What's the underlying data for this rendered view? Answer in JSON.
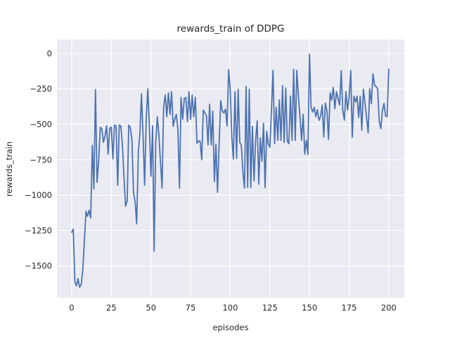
{
  "title": "rewards_train of DDPG",
  "colors": {
    "line": "#4c72b0",
    "plot_background": "#eaeaf2",
    "grid": "#ffffff",
    "text": "#262626",
    "figure_background": "#ffffff"
  },
  "chart_data": {
    "type": "line",
    "title": "rewards_train of DDPG",
    "xlabel": "episodes",
    "ylabel": "rewards_train",
    "x_ticks": [
      0,
      25,
      50,
      75,
      100,
      125,
      150,
      175,
      200
    ],
    "y_ticks": [
      0,
      -250,
      -500,
      -750,
      -1000,
      -1250,
      -1500
    ],
    "xlim": [
      -9.3,
      209.8
    ],
    "ylim": [
      -1725,
      99
    ],
    "grid": true,
    "legend": null,
    "series": [
      {
        "name": "rewards_train",
        "color": "#4c72b0",
        "x_range": [
          0,
          200
        ],
        "x_step": 1,
        "values": [
          -1262,
          -1240,
          -1610,
          -1640,
          -1590,
          -1650,
          -1630,
          -1525,
          -1320,
          -1114,
          -1150,
          -1106,
          -1160,
          -649,
          -956,
          -255,
          -910,
          -761,
          -522,
          -530,
          -627,
          -585,
          -510,
          -710,
          -528,
          -520,
          -745,
          -505,
          -512,
          -930,
          -505,
          -512,
          -650,
          -880,
          -1078,
          -1040,
          -505,
          -525,
          -608,
          -980,
          -1049,
          -1203,
          -700,
          -570,
          -285,
          -570,
          -930,
          -470,
          -250,
          -504,
          -866,
          -510,
          -1396,
          -634,
          -446,
          -578,
          -766,
          -950,
          -376,
          -293,
          -446,
          -278,
          -430,
          -270,
          -514,
          -464,
          -430,
          -537,
          -950,
          -310,
          -464,
          -318,
          -310,
          -480,
          -270,
          -464,
          -293,
          -446,
          -310,
          -634,
          -617,
          -620,
          -750,
          -400,
          -418,
          -440,
          -646,
          -358,
          -646,
          -407,
          -905,
          -640,
          -980,
          -628,
          -333,
          -406,
          -420,
          -393,
          -512,
          -114,
          -253,
          -590,
          -745,
          -270,
          -740,
          -253,
          -628,
          -646,
          -840,
          -950,
          -233,
          -945,
          -253,
          -945,
          -515,
          -900,
          -615,
          -476,
          -923,
          -595,
          -760,
          -492,
          -948,
          -550,
          -640,
          -662,
          -394,
          -119,
          -637,
          -380,
          -613,
          -328,
          -613,
          -227,
          -628,
          -244,
          -620,
          -637,
          -300,
          -613,
          -111,
          -613,
          -119,
          -300,
          -444,
          -613,
          -430,
          -710,
          -613,
          -712,
          -5,
          -380,
          -414,
          -380,
          -446,
          -397,
          -472,
          -442,
          -364,
          -590,
          -350,
          -404,
          -606,
          -278,
          -330,
          -240,
          -390,
          -270,
          -320,
          -364,
          -120,
          -404,
          -470,
          -270,
          -400,
          -310,
          -120,
          -591,
          -302,
          -343,
          -302,
          -451,
          -302,
          -541,
          -252,
          -350,
          -451,
          -560,
          -250,
          -355,
          -144,
          -220,
          -235,
          -250,
          -480,
          -530,
          -402,
          -353,
          -442,
          -445,
          -110
        ]
      }
    ]
  }
}
